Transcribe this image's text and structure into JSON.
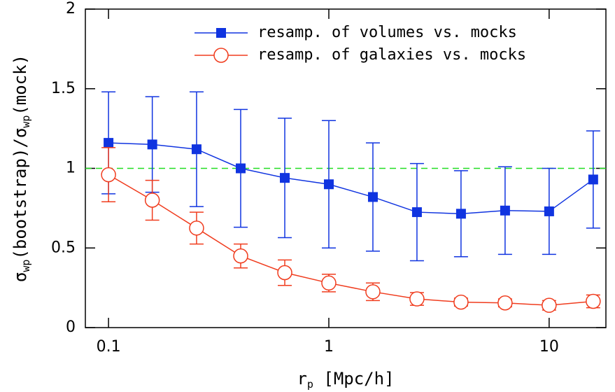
{
  "chart_data": {
    "type": "line",
    "xlabel": [
      "r",
      "p",
      " [Mpc/h]"
    ],
    "ylabel": [
      "σ",
      "wp",
      "(bootstrap)/σ",
      "wp",
      "(mock)"
    ],
    "x": [
      0.1,
      0.158,
      0.251,
      0.398,
      0.631,
      1,
      1.585,
      2.512,
      3.981,
      6.31,
      10,
      15.85
    ],
    "series": [
      {
        "name": "resamp. of volumes vs. mocks",
        "color": "#1034e0",
        "marker": "square",
        "values": [
          1.16,
          1.15,
          1.12,
          1.0,
          0.94,
          0.9,
          0.82,
          0.725,
          0.715,
          0.735,
          0.73,
          0.93
        ],
        "errors": [
          0.32,
          0.3,
          0.36,
          0.37,
          0.375,
          0.4,
          0.34,
          0.305,
          0.27,
          0.275,
          0.27,
          0.305
        ]
      },
      {
        "name": "resamp. of galaxies vs. mocks",
        "color": "#f03c1e",
        "marker": "circle",
        "values": [
          0.96,
          0.8,
          0.625,
          0.45,
          0.345,
          0.28,
          0.225,
          0.18,
          0.16,
          0.155,
          0.14,
          0.165
        ],
        "errors": [
          0.17,
          0.125,
          0.1,
          0.075,
          0.08,
          0.055,
          0.055,
          0.04,
          0.025,
          0.025,
          0.03,
          0.04
        ]
      }
    ],
    "reference_line": {
      "value": 1,
      "color": "#22dd22"
    },
    "xscale": "log",
    "xlim": [
      0.0785,
      18.1
    ],
    "xticks": [
      0.1,
      1,
      10
    ],
    "ylim": [
      0,
      2
    ],
    "yticks": [
      0,
      0.5,
      1,
      1.5,
      2
    ],
    "legend": "upper right"
  }
}
